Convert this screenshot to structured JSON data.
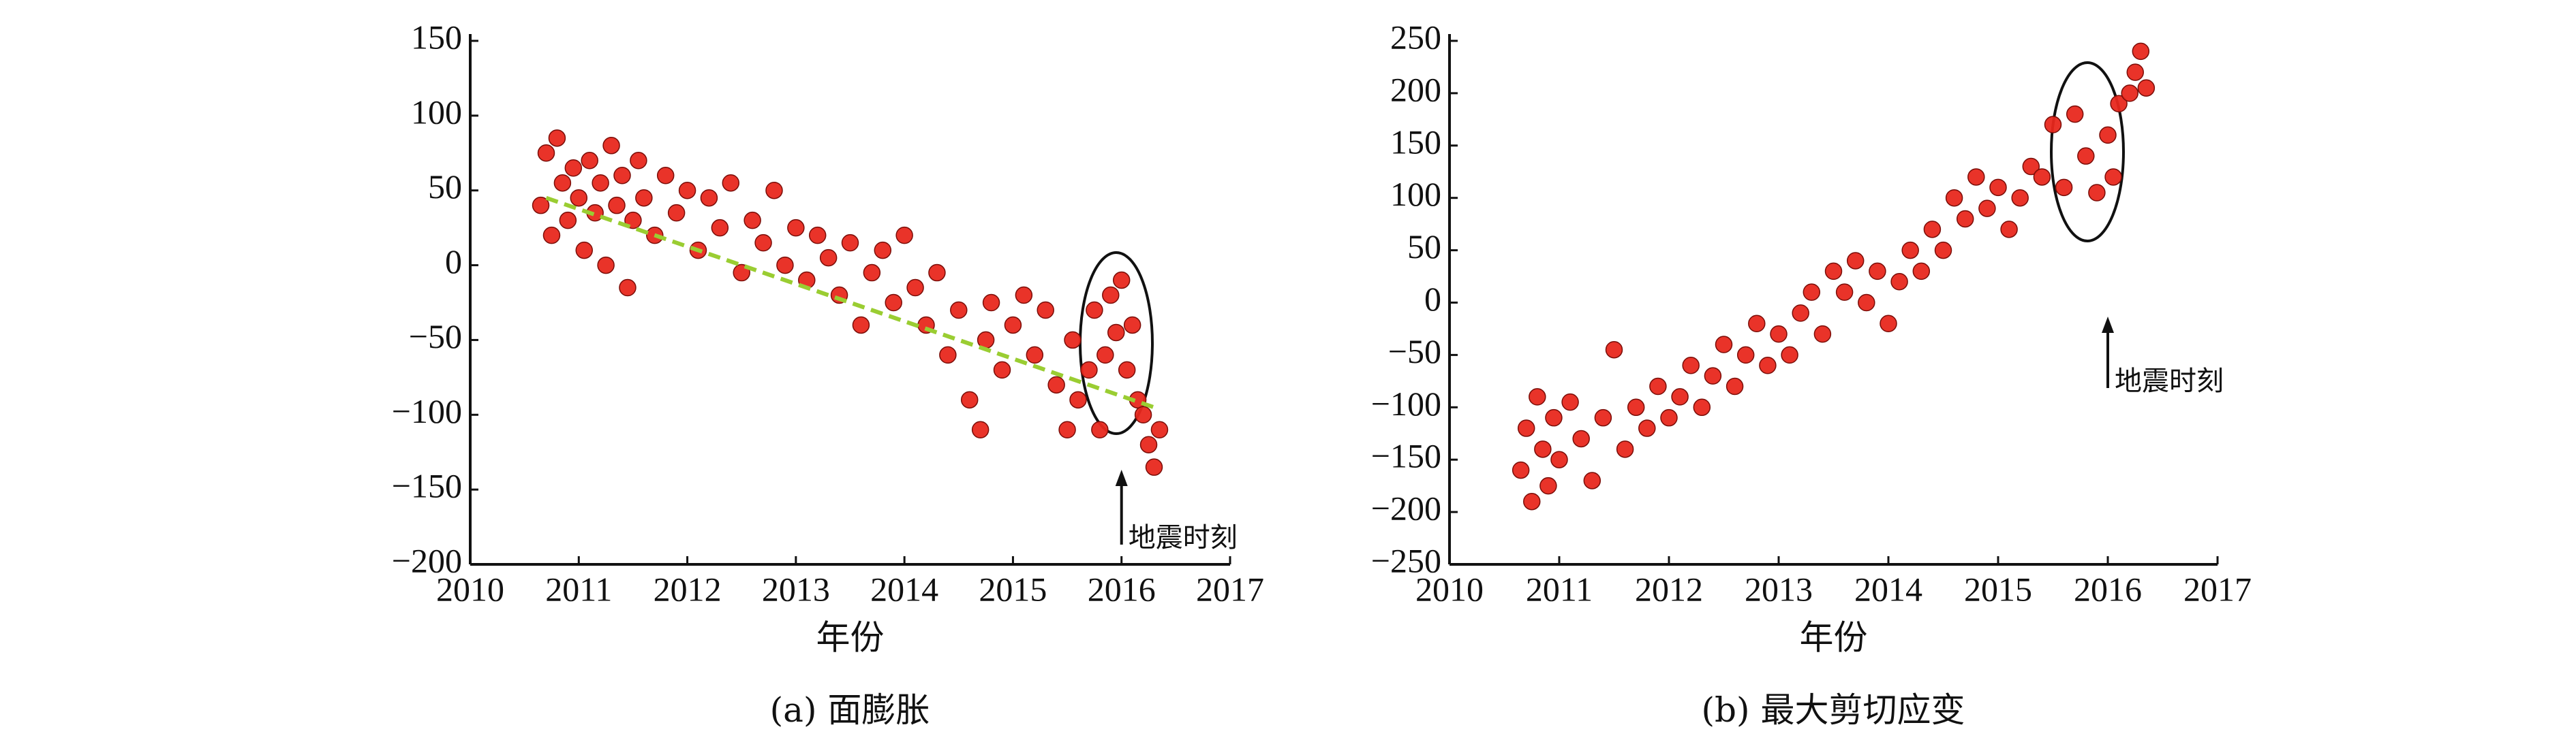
{
  "chart_data": [
    {
      "type": "scatter",
      "caption": "(a) 面膨胀",
      "xlabel": "年份",
      "xlim": [
        2010,
        2017
      ],
      "xticks": [
        2010,
        2011,
        2012,
        2013,
        2014,
        2015,
        2016,
        2017
      ],
      "ylim": [
        -200,
        150
      ],
      "yticks": [
        {
          "value": -200,
          "label": "−200"
        },
        {
          "value": -150,
          "label": "−150"
        },
        {
          "value": -100,
          "label": "−100"
        },
        {
          "value": -50,
          "label": "−50"
        },
        0,
        50,
        100,
        150
      ],
      "series": [
        {
          "color": "#e8281e",
          "x": [
            2010.65,
            2010.7,
            2010.75,
            2010.8,
            2010.85,
            2010.9,
            2010.95,
            2011.0,
            2011.05,
            2011.1,
            2011.15,
            2011.2,
            2011.25,
            2011.3,
            2011.35,
            2011.4,
            2011.45,
            2011.5,
            2011.55,
            2011.6,
            2011.7,
            2011.8,
            2011.9,
            2012.0,
            2012.1,
            2012.2,
            2012.3,
            2012.4,
            2012.5,
            2012.6,
            2012.7,
            2012.8,
            2012.9,
            2013.0,
            2013.1,
            2013.2,
            2013.3,
            2013.4,
            2013.5,
            2013.6,
            2013.7,
            2013.8,
            2013.9,
            2014.0,
            2014.1,
            2014.2,
            2014.3,
            2014.4,
            2014.5,
            2014.6,
            2014.7,
            2014.75,
            2014.8,
            2014.9,
            2015.0,
            2015.1,
            2015.2,
            2015.3,
            2015.4,
            2015.5,
            2015.55,
            2015.6,
            2015.7,
            2015.75,
            2015.8,
            2015.85,
            2015.9,
            2015.95,
            2016.0,
            2016.05,
            2016.1,
            2016.15,
            2016.2,
            2016.25,
            2016.3,
            2016.35
          ],
          "values": [
            40,
            75,
            20,
            85,
            55,
            30,
            65,
            45,
            10,
            70,
            35,
            55,
            0,
            80,
            40,
            60,
            -15,
            30,
            70,
            45,
            20,
            60,
            35,
            50,
            10,
            45,
            25,
            55,
            -5,
            30,
            15,
            50,
            0,
            25,
            -10,
            20,
            5,
            -20,
            15,
            -40,
            -5,
            10,
            -25,
            20,
            -15,
            -40,
            -5,
            -60,
            -30,
            -90,
            -110,
            -50,
            -25,
            -70,
            -40,
            -20,
            -60,
            -30,
            -80,
            -110,
            -50,
            -90,
            -70,
            -30,
            -110,
            -60,
            -20,
            -45,
            -10,
            -70,
            -40,
            -90,
            -100,
            -120,
            -135,
            -110
          ]
        }
      ],
      "trend": {
        "color": "#9acd32",
        "x": [
          2010.7,
          2016.3
        ],
        "y": [
          45,
          -95
        ]
      },
      "annotation": {
        "text": "地震时刻",
        "x": 2016
      }
    },
    {
      "type": "scatter",
      "caption": "(b) 最大剪切应变",
      "xlabel": "年份",
      "xlim": [
        2010,
        2017
      ],
      "xticks": [
        2010,
        2011,
        2012,
        2013,
        2014,
        2015,
        2016,
        2017
      ],
      "ylim": [
        -250,
        250
      ],
      "yticks": [
        {
          "value": -250,
          "label": "−250"
        },
        {
          "value": -200,
          "label": "−200"
        },
        {
          "value": -150,
          "label": "−150"
        },
        {
          "value": -100,
          "label": "−100"
        },
        {
          "value": -50,
          "label": "−50"
        },
        0,
        50,
        100,
        150,
        200,
        250
      ],
      "series": [
        {
          "color": "#e8281e",
          "x": [
            2010.65,
            2010.7,
            2010.75,
            2010.8,
            2010.85,
            2010.9,
            2010.95,
            2011.0,
            2011.1,
            2011.2,
            2011.3,
            2011.4,
            2011.5,
            2011.6,
            2011.7,
            2011.8,
            2011.9,
            2012.0,
            2012.1,
            2012.2,
            2012.3,
            2012.4,
            2012.5,
            2012.6,
            2012.7,
            2012.8,
            2012.9,
            2013.0,
            2013.1,
            2013.2,
            2013.3,
            2013.4,
            2013.5,
            2013.6,
            2013.7,
            2013.8,
            2013.9,
            2014.0,
            2014.1,
            2014.2,
            2014.3,
            2014.4,
            2014.5,
            2014.6,
            2014.7,
            2014.8,
            2014.9,
            2015.0,
            2015.1,
            2015.2,
            2015.3,
            2015.4,
            2015.5,
            2015.6,
            2015.7,
            2015.8,
            2015.9,
            2016.0,
            2016.05,
            2016.1,
            2016.2,
            2016.25,
            2016.3,
            2016.35
          ],
          "values": [
            -160,
            -120,
            -190,
            -90,
            -140,
            -175,
            -110,
            -150,
            -95,
            -130,
            -170,
            -110,
            -45,
            -140,
            -100,
            -120,
            -80,
            -110,
            -90,
            -60,
            -100,
            -70,
            -40,
            -80,
            -50,
            -20,
            -60,
            -30,
            -50,
            -10,
            10,
            -30,
            30,
            10,
            40,
            0,
            30,
            -20,
            20,
            50,
            30,
            70,
            50,
            100,
            80,
            120,
            90,
            110,
            70,
            100,
            130,
            120,
            170,
            110,
            180,
            140,
            105,
            160,
            120,
            190,
            200,
            220,
            240,
            205
          ]
        }
      ],
      "annotation": {
        "text": "地震时刻",
        "x": 2016
      }
    }
  ]
}
